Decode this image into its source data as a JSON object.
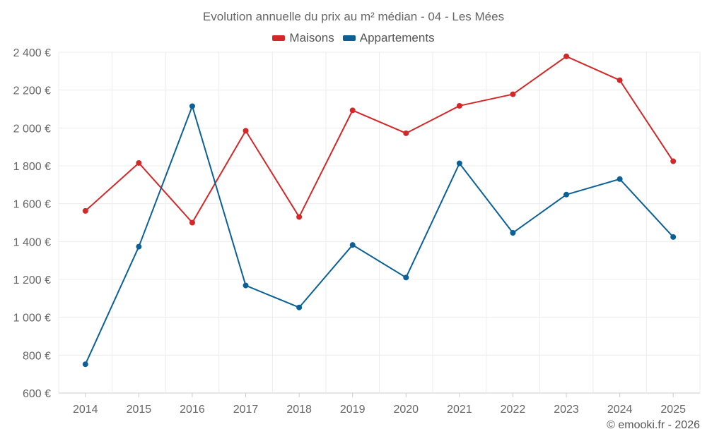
{
  "chart_data": {
    "type": "line",
    "title": "Evolution annuelle du prix au m² médian - 04 - Les Mées",
    "categories": [
      "2014",
      "2015",
      "2016",
      "2017",
      "2018",
      "2019",
      "2020",
      "2021",
      "2022",
      "2023",
      "2024",
      "2025"
    ],
    "series": [
      {
        "name": "Maisons",
        "color": "#d62728",
        "values": [
          1562,
          1815,
          1500,
          1985,
          1530,
          2093,
          1972,
          2117,
          2178,
          2378,
          2252,
          1824
        ]
      },
      {
        "name": "Appartements",
        "color": "#0a6197",
        "values": [
          752,
          1373,
          2115,
          1168,
          1052,
          1382,
          1210,
          1813,
          1446,
          1648,
          1730,
          1424
        ]
      }
    ],
    "ylim": [
      600,
      2400
    ],
    "yticks": [
      600,
      800,
      1000,
      1200,
      1400,
      1600,
      1800,
      2000,
      2200,
      2400
    ],
    "ytick_labels": [
      "600 €",
      "800 €",
      "1 000 €",
      "1 200 €",
      "1 400 €",
      "1 600 €",
      "1 800 €",
      "2 000 €",
      "2 200 €",
      "2 400 €"
    ],
    "grid": true,
    "legend_position": "top-center",
    "credit": "© emooki.fr - 2026"
  }
}
